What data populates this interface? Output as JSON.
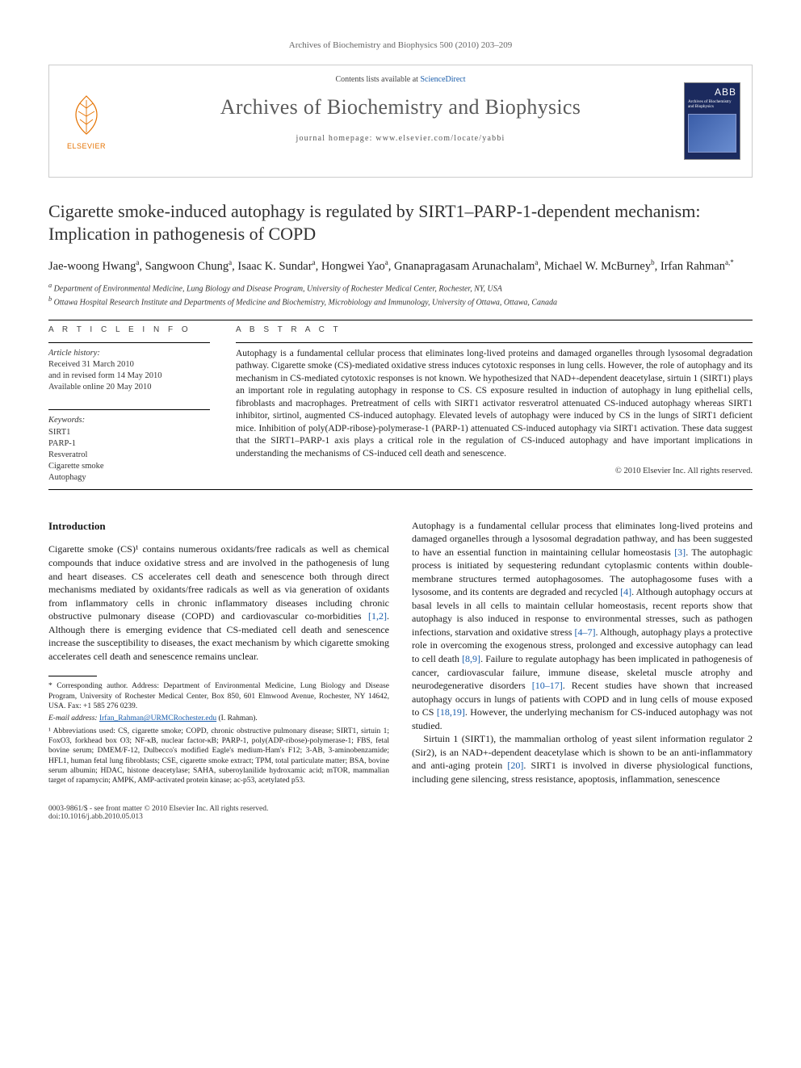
{
  "running_head": "Archives of Biochemistry and Biophysics 500 (2010) 203–209",
  "masthead": {
    "contents_prefix": "Contents lists available at ",
    "contents_link": "ScienceDirect",
    "journal": "Archives of Biochemistry and Biophysics",
    "homepage_label": "journal homepage: www.elsevier.com/locate/yabbi",
    "publisher_brand": "ELSEVIER",
    "cover_abbr": "ABB",
    "cover_title": "Archives of Biochemistry and Biophysics"
  },
  "title": "Cigarette smoke-induced autophagy is regulated by SIRT1–PARP-1-dependent mechanism: Implication in pathogenesis of COPD",
  "authors_html": "Jae-woong Hwang<sup>a</sup>, Sangwoon Chung<sup>a</sup>, Isaac K. Sundar<sup>a</sup>, Hongwei Yao<sup>a</sup>, Gnanapragasam Arunachalam<sup>a</sup>, Michael W. McBurney<sup>b</sup>, Irfan Rahman<sup>a,*</sup>",
  "affiliations": [
    "a Department of Environmental Medicine, Lung Biology and Disease Program, University of Rochester Medical Center, Rochester, NY, USA",
    "b Ottawa Hospital Research Institute and Departments of Medicine and Biochemistry, Microbiology and Immunology, University of Ottawa, Ottawa, Canada"
  ],
  "article_info": {
    "head": "A R T I C L E  I N F O",
    "history_label": "Article history:",
    "history": [
      "Received 31 March 2010",
      "and in revised form 14 May 2010",
      "Available online 20 May 2010"
    ],
    "keywords_label": "Keywords:",
    "keywords": [
      "SIRT1",
      "PARP-1",
      "Resveratrol",
      "Cigarette smoke",
      "Autophagy"
    ]
  },
  "abstract": {
    "head": "A B S T R A C T",
    "text": "Autophagy is a fundamental cellular process that eliminates long-lived proteins and damaged organelles through lysosomal degradation pathway. Cigarette smoke (CS)-mediated oxidative stress induces cytotoxic responses in lung cells. However, the role of autophagy and its mechanism in CS-mediated cytotoxic responses is not known. We hypothesized that NAD+-dependent deacetylase, sirtuin 1 (SIRT1) plays an important role in regulating autophagy in response to CS. CS exposure resulted in induction of autophagy in lung epithelial cells, fibroblasts and macrophages. Pretreatment of cells with SIRT1 activator resveratrol attenuated CS-induced autophagy whereas SIRT1 inhibitor, sirtinol, augmented CS-induced autophagy. Elevated levels of autophagy were induced by CS in the lungs of SIRT1 deficient mice. Inhibition of poly(ADP-ribose)-polymerase-1 (PARP-1) attenuated CS-induced autophagy via SIRT1 activation. These data suggest that the SIRT1–PARP-1 axis plays a critical role in the regulation of CS-induced autophagy and have important implications in understanding the mechanisms of CS-induced cell death and senescence.",
    "copyright": "© 2010 Elsevier Inc. All rights reserved."
  },
  "body": {
    "intro_head": "Introduction",
    "p1": "Cigarette smoke (CS)¹ contains numerous oxidants/free radicals as well as chemical compounds that induce oxidative stress and are involved in the pathogenesis of lung and heart diseases. CS accelerates cell death and senescence both through direct mechanisms mediated by oxidants/free radicals as well as via generation of oxidants from inflammatory cells in chronic inflammatory diseases including chronic obstructive pulmonary disease (COPD) and cardiovascular co-morbidities ",
    "p1_ref": "[1,2]",
    "p1b": ". Although there is emerging evidence that CS-mediated cell death and senescence increase the susceptibility to diseases, the exact mechanism by which cigarette smoking accelerates cell death and senescence remains unclear.",
    "p2a": "Autophagy is a fundamental cellular process that eliminates long-lived proteins and damaged organelles through a lysosomal degradation pathway, and has been suggested to have an essential function in maintaining cellular homeostasis ",
    "p2_ref1": "[3]",
    "p2b": ". The autophagic process is initiated by sequestering redundant cytoplasmic contents within double-membrane structures termed autophagosomes. The autophagosome fuses with a lysosome, and its contents are degraded and recycled ",
    "p2_ref2": "[4]",
    "p2c": ". Although autophagy occurs at basal levels in all cells to maintain cellular homeostasis, recent reports show that autophagy is also induced in response to environmental stresses, such as pathogen infections, starvation and oxidative stress ",
    "p2_ref3": "[4–7]",
    "p2d": ". Although, autophagy plays a protective role in overcoming the exogenous stress, prolonged and excessive autophagy can lead to cell death ",
    "p2_ref4": "[8,9]",
    "p2e": ". Failure to regulate autophagy has been implicated in pathogenesis of cancer, cardiovascular failure, immune disease, skeletal muscle atrophy and neurodegenerative disorders ",
    "p2_ref5": "[10–17]",
    "p2f": ". Recent studies have shown that increased autophagy occurs in lungs of patients with COPD and in lung cells of mouse exposed to CS ",
    "p2_ref6": "[18,19]",
    "p2g": ". However, the underlying mechanism for CS-induced autophagy was not studied.",
    "p3a": "Sirtuin 1 (SIRT1), the mammalian ortholog of yeast silent information regulator 2 (Sir2), is an NAD+-dependent deacetylase which is shown to be an anti-inflammatory and anti-aging protein ",
    "p3_ref": "[20]",
    "p3b": ". SIRT1 is involved in diverse physiological functions, including gene silencing, stress resistance, apoptosis, inflammation, senescence"
  },
  "footnotes": {
    "corr": "* Corresponding author. Address: Department of Environmental Medicine, Lung Biology and Disease Program, University of Rochester Medical Center, Box 850, 601 Elmwood Avenue, Rochester, NY 14642, USA. Fax: +1 585 276 0239.",
    "email_label": "E-mail address:",
    "email": "Irfan_Rahman@URMCRochester.edu",
    "email_who": "(I. Rahman).",
    "abbr": "¹ Abbreviations used: CS, cigarette smoke; COPD, chronic obstructive pulmonary disease; SIRT1, sirtuin 1; FoxO3, forkhead box O3; NF-κB, nuclear factor-κB; PARP-1, poly(ADP-ribose)-polymerase-1; FBS, fetal bovine serum; DMEM/F-12, Dulbecco's modified Eagle's medium-Ham's F12; 3-AB, 3-aminobenzamide; HFL1, human fetal lung fibroblasts; CSE, cigarette smoke extract; TPM, total particulate matter; BSA, bovine serum albumin; HDAC, histone deacetylase; SAHA, suberoylanilide hydroxamic acid; mTOR, mammalian target of rapamycin; AMPK, AMP-activated protein kinase; ac-p53, acetylated p53."
  },
  "footer": {
    "line1": "0003-9861/$ - see front matter © 2010 Elsevier Inc. All rights reserved.",
    "line2": "doi:10.1016/j.abb.2010.05.013"
  },
  "colors": {
    "link": "#1a5dab",
    "elsevier_orange": "#e57200",
    "cover_bg": "#1b2a5e",
    "text": "#000000"
  }
}
